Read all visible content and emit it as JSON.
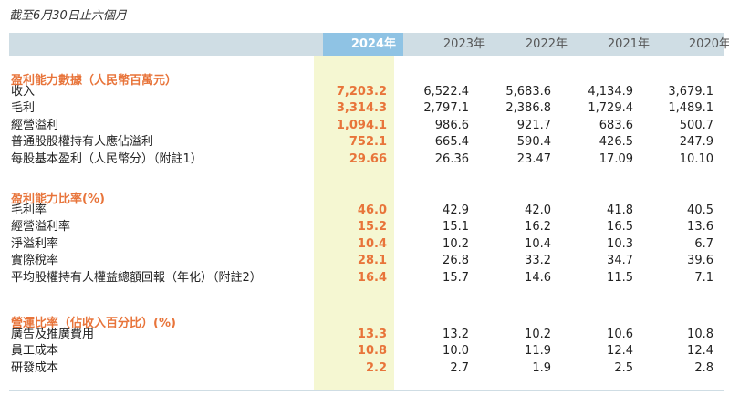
{
  "page": {
    "title": "截至6月30日止六個月"
  },
  "columns": [
    "2024年",
    "2023年",
    "2022年",
    "2021年",
    "2020年"
  ],
  "sections": [
    {
      "title": "盈利能力數據（人民幣百萬元）",
      "rows": [
        {
          "label": "收入",
          "values": [
            "7,203.2",
            "6,522.4",
            "5,683.6",
            "4,134.9",
            "3,679.1"
          ]
        },
        {
          "label": "毛利",
          "values": [
            "3,314.3",
            "2,797.1",
            "2,386.8",
            "1,729.4",
            "1,489.1"
          ]
        },
        {
          "label": "經營溢利",
          "values": [
            "1,094.1",
            "986.6",
            "921.7",
            "683.6",
            "500.7"
          ]
        },
        {
          "label": "普通股股權持有人應佔溢利",
          "values": [
            "752.1",
            "665.4",
            "590.4",
            "426.5",
            "247.9"
          ]
        },
        {
          "label": "每股基本盈利（人民幣分）（附註1）",
          "values": [
            "29.66",
            "26.36",
            "23.47",
            "17.09",
            "10.10"
          ]
        }
      ]
    },
    {
      "title": "盈利能力比率(%)",
      "rows": [
        {
          "label": "毛利率",
          "values": [
            "46.0",
            "42.9",
            "42.0",
            "41.8",
            "40.5"
          ]
        },
        {
          "label": "經營溢利率",
          "values": [
            "15.2",
            "15.1",
            "16.2",
            "16.5",
            "13.6"
          ]
        },
        {
          "label": "淨溢利率",
          "values": [
            "10.4",
            "10.2",
            "10.4",
            "10.3",
            "6.7"
          ]
        },
        {
          "label": "實際稅率",
          "values": [
            "28.1",
            "26.8",
            "33.2",
            "34.7",
            "39.6"
          ]
        },
        {
          "label": "平均股權持有人權益總額回報（年化）（附註2）",
          "values": [
            "16.4",
            "15.7",
            "14.6",
            "11.5",
            "7.1"
          ]
        }
      ]
    },
    {
      "title": "營運比率（佔收入百分比）(%)",
      "rows": [
        {
          "label": "廣告及推廣費用",
          "values": [
            "13.3",
            "13.2",
            "10.2",
            "10.6",
            "10.8"
          ]
        },
        {
          "label": "員工成本",
          "values": [
            "10.8",
            "10.0",
            "11.9",
            "12.4",
            "12.4"
          ]
        },
        {
          "label": "研發成本",
          "values": [
            "2.2",
            "2.7",
            "1.9",
            "2.5",
            "2.8"
          ]
        }
      ]
    }
  ]
}
